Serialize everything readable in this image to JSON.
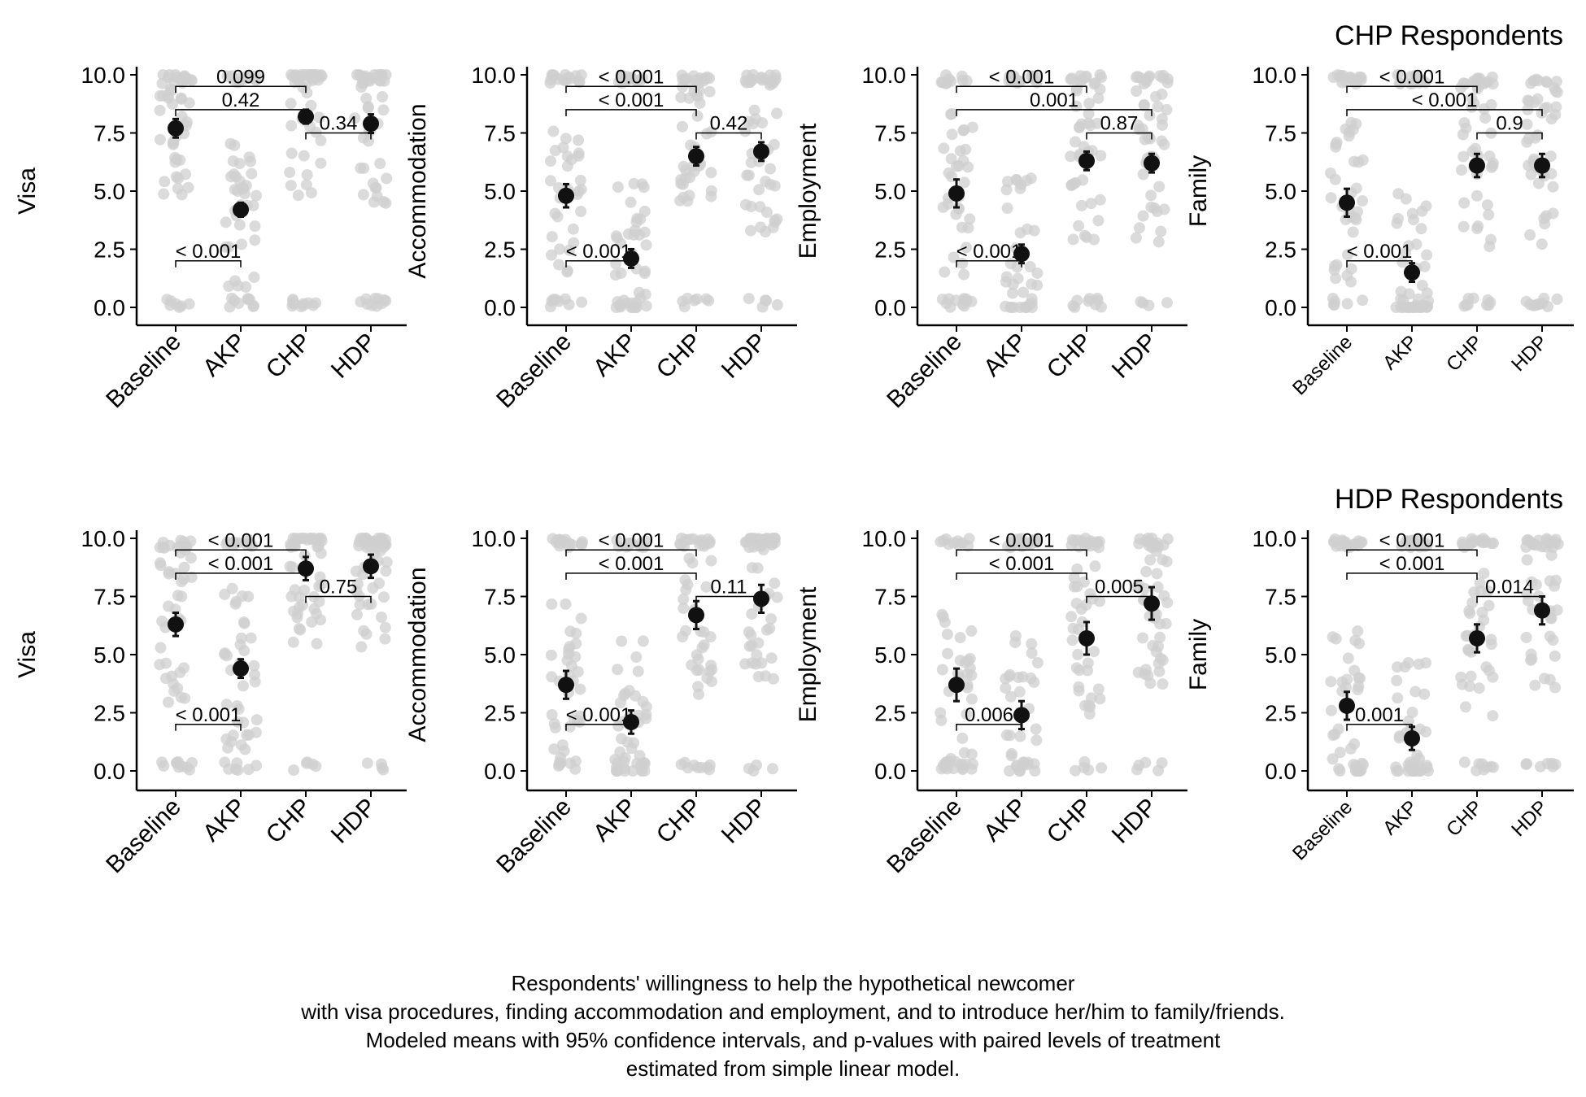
{
  "chart_data": {
    "type": "scatter",
    "categories": [
      "Baseline",
      "AKP",
      "CHP",
      "HDP"
    ],
    "yticks": [
      "0.0",
      "2.5",
      "5.0",
      "7.5",
      "10.0"
    ],
    "ylim": [
      -0.8,
      10.8
    ],
    "caption": [
      "Respondents' willingness to help the hypothetical newcomer",
      "with visa procedures, finding accommodation and employment, and to introduce her/him to family/friends.",
      "Modeled means with 95% confidence intervals, and p-values with paired levels of treatment",
      "estimated from simple linear model."
    ],
    "rows": [
      {
        "title": "CHP Respondents",
        "panels": [
          {
            "ylabel": "Visa",
            "means": [
              7.7,
              4.2,
              8.2,
              7.9
            ],
            "ci": [
              0.4,
              0.3,
              0.3,
              0.4
            ],
            "brackets": [
              {
                "from": 0,
                "to": 2,
                "y": 9.5,
                "label": "0.099"
              },
              {
                "from": 0,
                "to": 2,
                "y": 8.5,
                "label": "0.42"
              },
              {
                "from": 2,
                "to": 3,
                "y": 7.5,
                "label": "0.34"
              },
              {
                "from": 0,
                "to": 1,
                "y": 2.0,
                "label": "< 0.001"
              }
            ]
          },
          {
            "ylabel": "Accommodation",
            "means": [
              4.8,
              2.1,
              6.5,
              6.7
            ],
            "ci": [
              0.5,
              0.4,
              0.4,
              0.4
            ],
            "brackets": [
              {
                "from": 0,
                "to": 2,
                "y": 9.5,
                "label": "< 0.001"
              },
              {
                "from": 0,
                "to": 2,
                "y": 8.5,
                "label": "< 0.001"
              },
              {
                "from": 2,
                "to": 3,
                "y": 7.5,
                "label": "0.42"
              },
              {
                "from": 0,
                "to": 1,
                "y": 2.0,
                "label": "< 0.001"
              }
            ]
          },
          {
            "ylabel": "Employment",
            "means": [
              4.9,
              2.3,
              6.3,
              6.2
            ],
            "ci": [
              0.6,
              0.4,
              0.4,
              0.4
            ],
            "brackets": [
              {
                "from": 0,
                "to": 2,
                "y": 9.5,
                "label": "< 0.001"
              },
              {
                "from": 0,
                "to": 3,
                "y": 8.5,
                "label": "0.001"
              },
              {
                "from": 2,
                "to": 3,
                "y": 7.5,
                "label": "0.87"
              },
              {
                "from": 0,
                "to": 1,
                "y": 2.0,
                "label": "< 0.001"
              }
            ]
          },
          {
            "ylabel": "Family",
            "means": [
              4.5,
              1.5,
              6.1,
              6.1
            ],
            "ci": [
              0.6,
              0.4,
              0.5,
              0.5
            ],
            "brackets": [
              {
                "from": 0,
                "to": 2,
                "y": 9.5,
                "label": "< 0.001"
              },
              {
                "from": 0,
                "to": 3,
                "y": 8.5,
                "label": "< 0.001"
              },
              {
                "from": 2,
                "to": 3,
                "y": 7.5,
                "label": "0.9"
              },
              {
                "from": 0,
                "to": 1,
                "y": 2.0,
                "label": "< 0.001"
              }
            ]
          }
        ]
      },
      {
        "title": "HDP Respondents",
        "panels": [
          {
            "ylabel": "Visa",
            "means": [
              6.3,
              4.4,
              8.7,
              8.8
            ],
            "ci": [
              0.5,
              0.4,
              0.5,
              0.5
            ],
            "brackets": [
              {
                "from": 0,
                "to": 2,
                "y": 9.5,
                "label": "< 0.001"
              },
              {
                "from": 0,
                "to": 2,
                "y": 8.5,
                "label": "< 0.001"
              },
              {
                "from": 2,
                "to": 3,
                "y": 7.5,
                "label": "0.75"
              },
              {
                "from": 0,
                "to": 1,
                "y": 2.0,
                "label": "< 0.001"
              }
            ]
          },
          {
            "ylabel": "Accommodation",
            "means": [
              3.7,
              2.1,
              6.7,
              7.4
            ],
            "ci": [
              0.6,
              0.5,
              0.6,
              0.6
            ],
            "brackets": [
              {
                "from": 0,
                "to": 2,
                "y": 9.5,
                "label": "< 0.001"
              },
              {
                "from": 0,
                "to": 2,
                "y": 8.5,
                "label": "< 0.001"
              },
              {
                "from": 2,
                "to": 3,
                "y": 7.5,
                "label": "0.11"
              },
              {
                "from": 0,
                "to": 1,
                "y": 2.0,
                "label": "< 0.001"
              }
            ]
          },
          {
            "ylabel": "Employment",
            "means": [
              3.7,
              2.4,
              5.7,
              7.2
            ],
            "ci": [
              0.7,
              0.6,
              0.7,
              0.7
            ],
            "brackets": [
              {
                "from": 0,
                "to": 2,
                "y": 9.5,
                "label": "< 0.001"
              },
              {
                "from": 0,
                "to": 2,
                "y": 8.5,
                "label": "< 0.001"
              },
              {
                "from": 2,
                "to": 3,
                "y": 7.5,
                "label": "0.005"
              },
              {
                "from": 0,
                "to": 1,
                "y": 2.0,
                "label": "0.006"
              }
            ]
          },
          {
            "ylabel": "Family",
            "means": [
              2.8,
              1.4,
              5.7,
              6.9
            ],
            "ci": [
              0.6,
              0.5,
              0.6,
              0.6
            ],
            "brackets": [
              {
                "from": 0,
                "to": 2,
                "y": 9.5,
                "label": "< 0.001"
              },
              {
                "from": 0,
                "to": 2,
                "y": 8.5,
                "label": "< 0.001"
              },
              {
                "from": 2,
                "to": 3,
                "y": 7.5,
                "label": "0.014"
              },
              {
                "from": 0,
                "to": 1,
                "y": 2.0,
                "label": "0.001"
              }
            ]
          }
        ]
      }
    ]
  },
  "colors": {
    "jitter_points": "#cfcfcf",
    "mean_points": "#111111",
    "axis": "#000000",
    "text": "#000000"
  }
}
